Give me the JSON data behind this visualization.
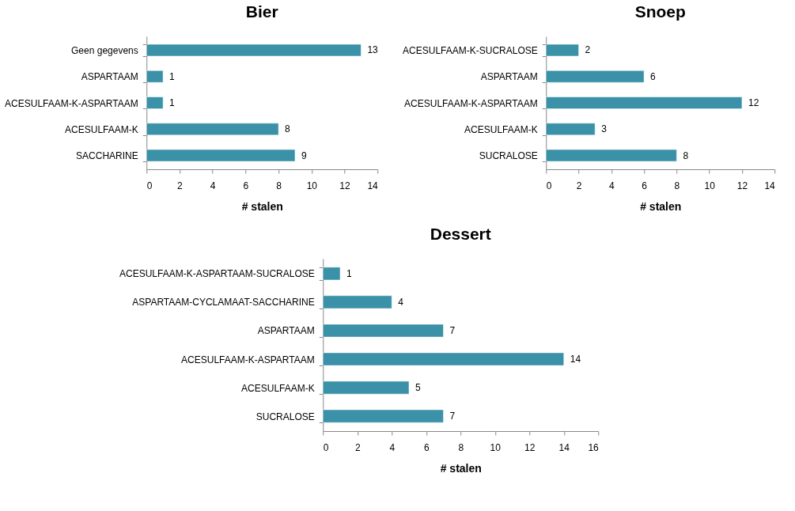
{
  "chart_data": [
    {
      "type": "bar",
      "orientation": "horizontal",
      "title": "Bier",
      "xlabel": "# stalen",
      "categories": [
        "Geen gegevens",
        "ASPARTAAM",
        "ACESULFAAM-K-ASPARTAAM",
        "ACESULFAAM-K",
        "SACCHARINE"
      ],
      "values": [
        13,
        1,
        1,
        8,
        9
      ],
      "color": "#3a91a8",
      "xlim": [
        0,
        14
      ],
      "xticks": [
        0,
        2,
        4,
        6,
        8,
        10,
        12,
        14
      ],
      "data_labels": true,
      "grid": false
    },
    {
      "type": "bar",
      "orientation": "horizontal",
      "title": "Snoep",
      "xlabel": "# stalen",
      "categories": [
        "ACESULFAAM-K-SUCRALOSE",
        "ASPARTAAM",
        "ACESULFAAM-K-ASPARTAAM",
        "ACESULFAAM-K",
        "SUCRALOSE"
      ],
      "values": [
        2,
        6,
        12,
        3,
        8
      ],
      "color": "#3a91a8",
      "xlim": [
        0,
        14
      ],
      "xticks": [
        0,
        2,
        4,
        6,
        8,
        10,
        12,
        14
      ],
      "data_labels": true,
      "grid": false
    },
    {
      "type": "bar",
      "orientation": "horizontal",
      "title": "Dessert",
      "xlabel": "# stalen",
      "categories": [
        "ACESULFAAM-K-ASPARTAAM-SUCRALOSE",
        "ASPARTAAM-CYCLAMAAT-SACCHARINE",
        "ASPARTAAM",
        "ACESULFAAM-K-ASPARTAAM",
        "ACESULFAAM-K",
        "SUCRALOSE"
      ],
      "values": [
        1,
        4,
        7,
        14,
        5,
        7
      ],
      "color": "#3a91a8",
      "xlim": [
        0,
        16
      ],
      "xticks": [
        0,
        2,
        4,
        6,
        8,
        10,
        12,
        14,
        16
      ],
      "data_labels": true,
      "grid": false
    }
  ]
}
